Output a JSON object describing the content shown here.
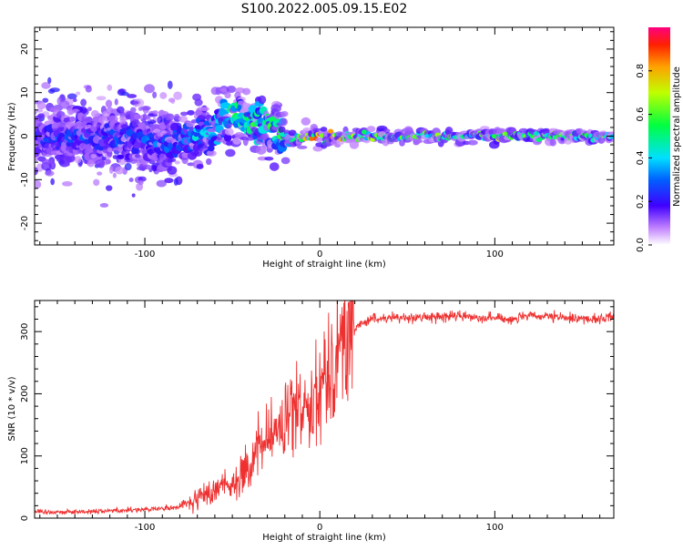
{
  "title": "S100.2022.005.09.15.E02",
  "chart_data": [
    {
      "type": "heatmap",
      "xlabel": "Height of straight line (km)",
      "ylabel": "Frequency (Hz)",
      "xlim": [
        -163,
        168
      ],
      "ylim": [
        -25,
        25
      ],
      "xticks": [
        -100,
        0,
        100
      ],
      "yticks": [
        -20,
        -10,
        0,
        10,
        20
      ],
      "grid": false,
      "colorbar": {
        "label": "Normalized spectral amplitude",
        "range": [
          0,
          1
        ],
        "ticks": [
          0.0,
          0.2,
          0.4,
          0.6,
          0.8
        ],
        "colormap": [
          "#ffffff",
          "#7f00ff",
          "#0000ff",
          "#00ffff",
          "#00ff00",
          "#ffff00",
          "#ff0000",
          "#ff0080"
        ]
      },
      "ridge": {
        "description_x": [
          -163,
          -120,
          -90,
          -75,
          -60,
          -50,
          -40,
          -30,
          -20,
          -15,
          -10,
          0,
          20,
          60,
          100,
          140,
          168
        ],
        "frequency": [
          0,
          0,
          -2,
          -1,
          2,
          5,
          3,
          2,
          0,
          -2,
          0,
          0,
          0,
          0,
          0,
          0,
          0
        ],
        "amplitude": [
          0.25,
          0.3,
          0.3,
          0.35,
          0.45,
          0.55,
          0.5,
          0.55,
          0.5,
          0.45,
          0.6,
          0.85,
          0.6,
          0.55,
          0.6,
          0.6,
          0.6
        ]
      }
    },
    {
      "type": "line",
      "xlabel": "Height of straight line (km)",
      "ylabel": "SNR (10 * v/v)",
      "xlim": [
        -163,
        168
      ],
      "ylim": [
        0,
        350
      ],
      "xticks": [
        -100,
        0,
        100
      ],
      "yticks": [
        0,
        100,
        200,
        300
      ],
      "grid": false,
      "color": "#ee3030",
      "series": [
        {
          "x": [
            -163,
            -140,
            -120,
            -100,
            -90,
            -80,
            -70,
            -60,
            -55,
            -50,
            -45,
            -40,
            -35,
            -30,
            -25,
            -20,
            -15,
            -10,
            -5,
            0,
            5,
            10,
            15,
            20,
            25,
            30,
            40,
            60,
            80,
            100,
            110,
            120,
            140,
            160,
            168
          ],
          "y": [
            10,
            10,
            12,
            14,
            15,
            18,
            30,
            45,
            60,
            55,
            70,
            80,
            110,
            130,
            140,
            150,
            170,
            180,
            200,
            210,
            240,
            270,
            290,
            305,
            315,
            320,
            322,
            323,
            325,
            322,
            320,
            325,
            322,
            320,
            325
          ]
        }
      ]
    }
  ]
}
